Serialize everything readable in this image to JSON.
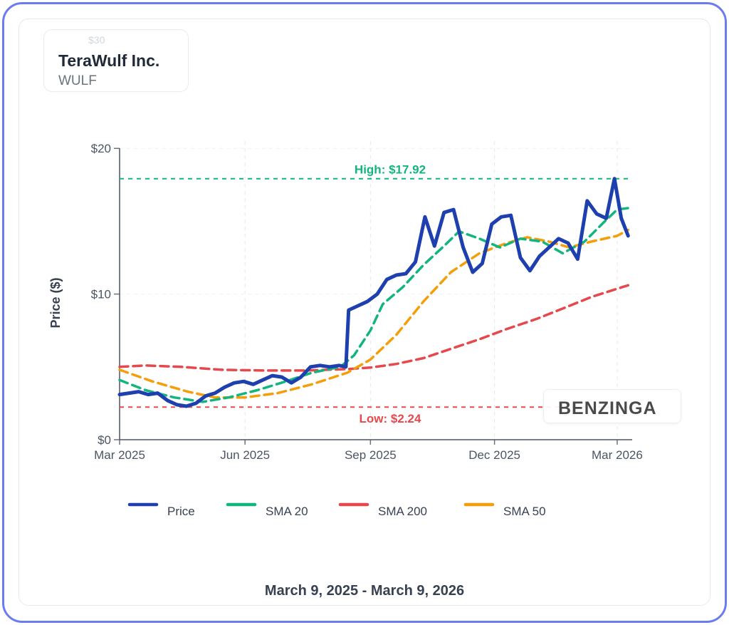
{
  "header": {
    "company": "TeraWulf Inc.",
    "ticker": "WULF",
    "partial_hidden_tick": "$30"
  },
  "watermark": {
    "text": "BENZINGA"
  },
  "footer": {
    "date_range": "March 9, 2025 - March 9, 2026"
  },
  "colors": {
    "price": "#1e3fae",
    "sma20": "#13b57f",
    "sma200": "#e5484d",
    "sma50": "#f59e0b",
    "high": "#13b57f",
    "low": "#e5484d"
  },
  "chart_data": {
    "type": "line",
    "ylabel": "Price ($)",
    "ylim": [
      0,
      20.5
    ],
    "y_ticks": [
      {
        "value": 0,
        "label": "$0"
      },
      {
        "value": 10,
        "label": "$10"
      },
      {
        "value": 20,
        "label": "$20"
      }
    ],
    "x_ticks": [
      {
        "date": "2025-03-01",
        "label": "Mar 2025"
      },
      {
        "date": "2025-06-01",
        "label": "Jun 2025"
      },
      {
        "date": "2025-09-01",
        "label": "Sep 2025"
      },
      {
        "date": "2025-12-01",
        "label": "Dec 2025"
      },
      {
        "date": "2026-03-01",
        "label": "Mar 2026"
      }
    ],
    "x_range": [
      "2025-03-01",
      "2026-03-12"
    ],
    "grid": true,
    "legend_position": "bottom",
    "annotations": [
      {
        "type": "hline",
        "value": 17.92,
        "label": "High: $17.92"
      },
      {
        "type": "hline",
        "value": 2.24,
        "label": "Low: $2.24"
      }
    ],
    "series": [
      {
        "name": "Price",
        "key": "price",
        "points": [
          [
            "2025-03-01",
            3.1
          ],
          [
            "2025-03-08",
            3.2
          ],
          [
            "2025-03-15",
            3.3
          ],
          [
            "2025-03-22",
            3.1
          ],
          [
            "2025-03-29",
            3.2
          ],
          [
            "2025-04-05",
            2.7
          ],
          [
            "2025-04-12",
            2.4
          ],
          [
            "2025-04-19",
            2.3
          ],
          [
            "2025-04-26",
            2.5
          ],
          [
            "2025-05-03",
            3.0
          ],
          [
            "2025-05-10",
            3.2
          ],
          [
            "2025-05-17",
            3.6
          ],
          [
            "2025-05-24",
            3.9
          ],
          [
            "2025-05-31",
            4.0
          ],
          [
            "2025-06-07",
            3.8
          ],
          [
            "2025-06-14",
            4.1
          ],
          [
            "2025-06-21",
            4.4
          ],
          [
            "2025-06-28",
            4.3
          ],
          [
            "2025-07-05",
            3.9
          ],
          [
            "2025-07-12",
            4.3
          ],
          [
            "2025-07-19",
            5.0
          ],
          [
            "2025-07-26",
            5.1
          ],
          [
            "2025-08-02",
            5.0
          ],
          [
            "2025-08-09",
            5.1
          ],
          [
            "2025-08-14",
            5.0
          ],
          [
            "2025-08-16",
            8.9
          ],
          [
            "2025-08-23",
            9.2
          ],
          [
            "2025-08-30",
            9.5
          ],
          [
            "2025-09-06",
            10.0
          ],
          [
            "2025-09-13",
            11.0
          ],
          [
            "2025-09-20",
            11.3
          ],
          [
            "2025-09-27",
            11.4
          ],
          [
            "2025-10-04",
            12.2
          ],
          [
            "2025-10-11",
            15.3
          ],
          [
            "2025-10-18",
            13.3
          ],
          [
            "2025-10-25",
            15.6
          ],
          [
            "2025-11-01",
            15.8
          ],
          [
            "2025-11-08",
            13.2
          ],
          [
            "2025-11-15",
            11.5
          ],
          [
            "2025-11-22",
            12.1
          ],
          [
            "2025-11-29",
            14.8
          ],
          [
            "2025-12-06",
            15.3
          ],
          [
            "2025-12-13",
            15.4
          ],
          [
            "2025-12-20",
            12.5
          ],
          [
            "2025-12-27",
            11.6
          ],
          [
            "2026-01-03",
            12.6
          ],
          [
            "2026-01-10",
            13.2
          ],
          [
            "2026-01-17",
            13.8
          ],
          [
            "2026-01-24",
            13.5
          ],
          [
            "2026-01-31",
            12.4
          ],
          [
            "2026-02-07",
            16.4
          ],
          [
            "2026-02-14",
            15.5
          ],
          [
            "2026-02-21",
            15.2
          ],
          [
            "2026-02-27",
            17.92
          ],
          [
            "2026-03-04",
            15.2
          ],
          [
            "2026-03-09",
            14.0
          ]
        ]
      },
      {
        "name": "SMA 20",
        "key": "sma20",
        "points": [
          [
            "2025-03-01",
            4.1
          ],
          [
            "2025-03-20",
            3.4
          ],
          [
            "2025-04-10",
            2.9
          ],
          [
            "2025-05-01",
            2.6
          ],
          [
            "2025-05-20",
            2.9
          ],
          [
            "2025-06-10",
            3.4
          ],
          [
            "2025-07-01",
            4.0
          ],
          [
            "2025-07-20",
            4.6
          ],
          [
            "2025-08-10",
            5.0
          ],
          [
            "2025-08-20",
            5.8
          ],
          [
            "2025-09-01",
            7.5
          ],
          [
            "2025-09-10",
            9.3
          ],
          [
            "2025-09-25",
            10.5
          ],
          [
            "2025-10-10",
            12.0
          ],
          [
            "2025-10-25",
            13.3
          ],
          [
            "2025-11-05",
            14.3
          ],
          [
            "2025-11-20",
            13.8
          ],
          [
            "2025-12-05",
            13.2
          ],
          [
            "2025-12-20",
            13.8
          ],
          [
            "2026-01-05",
            13.6
          ],
          [
            "2026-01-20",
            12.8
          ],
          [
            "2026-02-05",
            13.6
          ],
          [
            "2026-02-20",
            15.0
          ],
          [
            "2026-03-01",
            15.8
          ],
          [
            "2026-03-09",
            15.9
          ]
        ]
      },
      {
        "name": "SMA 200",
        "key": "sma200",
        "points": [
          [
            "2025-03-01",
            5.0
          ],
          [
            "2025-03-20",
            5.1
          ],
          [
            "2025-04-15",
            5.0
          ],
          [
            "2025-05-15",
            4.8
          ],
          [
            "2025-06-15",
            4.75
          ],
          [
            "2025-07-15",
            4.75
          ],
          [
            "2025-08-15",
            4.85
          ],
          [
            "2025-09-01",
            4.95
          ],
          [
            "2025-09-20",
            5.2
          ],
          [
            "2025-10-10",
            5.6
          ],
          [
            "2025-11-01",
            6.3
          ],
          [
            "2025-11-20",
            6.9
          ],
          [
            "2025-12-10",
            7.6
          ],
          [
            "2026-01-01",
            8.3
          ],
          [
            "2026-01-20",
            9.0
          ],
          [
            "2026-02-10",
            9.8
          ],
          [
            "2026-03-09",
            10.6
          ]
        ]
      },
      {
        "name": "SMA 50",
        "key": "sma50",
        "points": [
          [
            "2025-03-01",
            4.8
          ],
          [
            "2025-03-25",
            4.0
          ],
          [
            "2025-04-20",
            3.3
          ],
          [
            "2025-05-10",
            2.9
          ],
          [
            "2025-06-01",
            2.9
          ],
          [
            "2025-06-25",
            3.2
          ],
          [
            "2025-07-20",
            3.8
          ],
          [
            "2025-08-15",
            4.6
          ],
          [
            "2025-09-01",
            5.5
          ],
          [
            "2025-09-20",
            7.2
          ],
          [
            "2025-10-10",
            9.5
          ],
          [
            "2025-10-30",
            11.5
          ],
          [
            "2025-11-20",
            12.8
          ],
          [
            "2025-12-10",
            13.5
          ],
          [
            "2025-12-25",
            13.9
          ],
          [
            "2026-01-10",
            13.6
          ],
          [
            "2026-01-25",
            13.2
          ],
          [
            "2026-02-10",
            13.6
          ],
          [
            "2026-03-01",
            14.0
          ],
          [
            "2026-03-09",
            14.4
          ]
        ]
      }
    ]
  }
}
